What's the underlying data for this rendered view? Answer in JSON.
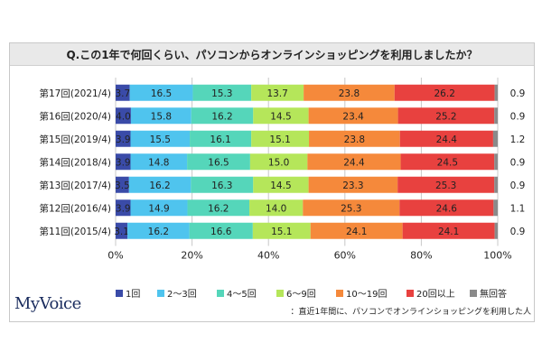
{
  "chart_data": {
    "type": "bar",
    "orientation": "horizontal",
    "stacked": true,
    "percent": true,
    "title": "Q.この1年で何回くらい、パソコンからオンラインショッピングを利用しましたか？",
    "categories": [
      "第17回(2021/4)",
      "第16回(2020/4)",
      "第15回(2019/4)",
      "第14回(2018/4)",
      "第13回(2017/4)",
      "第12回(2016/4)",
      "第11回(2015/4)"
    ],
    "series": [
      {
        "name": "1回",
        "color": "#3a4ba8",
        "values": [
          3.7,
          4.0,
          3.9,
          3.9,
          3.5,
          3.9,
          3.1
        ]
      },
      {
        "name": "2～3回",
        "color": "#4fc4ee",
        "values": [
          16.5,
          15.8,
          15.5,
          14.8,
          16.2,
          14.9,
          16.2
        ]
      },
      {
        "name": "4～5回",
        "color": "#55d6ba",
        "values": [
          15.3,
          16.2,
          16.1,
          16.5,
          16.3,
          16.2,
          16.6
        ]
      },
      {
        "name": "6～9回",
        "color": "#b5e65a",
        "values": [
          13.7,
          14.5,
          15.1,
          15.0,
          14.5,
          14.0,
          15.1
        ]
      },
      {
        "name": "10～19回",
        "color": "#f5893b",
        "values": [
          23.8,
          23.4,
          23.8,
          24.4,
          23.3,
          25.3,
          24.1
        ]
      },
      {
        "name": "20回以上",
        "color": "#e8413f",
        "values": [
          26.2,
          25.2,
          24.4,
          24.5,
          25.3,
          24.6,
          24.1
        ]
      },
      {
        "name": "無回答",
        "color": "#8a8a8a",
        "values": [
          0.9,
          0.9,
          1.2,
          0.9,
          0.9,
          1.1,
          0.9
        ]
      }
    ],
    "xlim": [
      0,
      100
    ],
    "xticks": [
      "0%",
      "20%",
      "40%",
      "60%",
      "80%",
      "100%"
    ],
    "grid": true,
    "legend_position": "bottom"
  },
  "footer": {
    "logo": "MyVoice",
    "note": "：直近1年間に、パソコンでオンラインショッピングを利用した人"
  }
}
